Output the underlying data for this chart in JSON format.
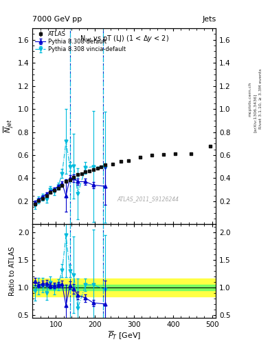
{
  "title_main": "7000 GeV pp",
  "title_right": "Jets",
  "plot_title": "N$_{jet}$ vs pT (LJ) (1 < $\\Delta y$ < 2)",
  "xlabel": "$\\overline{P}_T$ [GeV]",
  "ylabel_main": "$\\overline{N}_{jet}$",
  "ylabel_ratio": "Ratio to ATLAS",
  "watermark": "ATLAS_2011_S9126244",
  "right_label1": "Rivet 3.1.10, ≥ 3.3M events",
  "right_label2": "[arXiv:1306.3436]",
  "right_label3": "mcplots.cern.ch",
  "atlas_x": [
    46,
    56,
    66,
    76,
    86,
    96,
    106,
    116,
    126,
    136,
    146,
    156,
    166,
    176,
    186,
    196,
    206,
    216,
    226,
    246,
    266,
    286,
    316,
    346,
    376,
    406,
    446,
    496
  ],
  "atlas_y": [
    0.175,
    0.205,
    0.225,
    0.245,
    0.275,
    0.295,
    0.315,
    0.335,
    0.37,
    0.385,
    0.41,
    0.43,
    0.44,
    0.455,
    0.465,
    0.475,
    0.485,
    0.5,
    0.515,
    0.525,
    0.545,
    0.555,
    0.58,
    0.6,
    0.605,
    0.61,
    0.61,
    0.68
  ],
  "atlas_yerr": [
    0.008,
    0.008,
    0.008,
    0.008,
    0.008,
    0.008,
    0.008,
    0.008,
    0.008,
    0.008,
    0.008,
    0.008,
    0.008,
    0.008,
    0.008,
    0.008,
    0.008,
    0.008,
    0.008,
    0.008,
    0.008,
    0.008,
    0.008,
    0.008,
    0.008,
    0.008,
    0.008,
    0.012
  ],
  "py8_x": [
    46,
    56,
    66,
    76,
    86,
    96,
    106,
    116,
    126,
    136,
    146,
    156,
    176,
    196,
    226
  ],
  "py8_y": [
    0.195,
    0.215,
    0.24,
    0.265,
    0.285,
    0.308,
    0.33,
    0.355,
    0.248,
    0.4,
    0.4,
    0.37,
    0.37,
    0.34,
    0.33
  ],
  "py8_yerr": [
    0.01,
    0.01,
    0.01,
    0.012,
    0.012,
    0.012,
    0.015,
    0.018,
    0.14,
    0.025,
    0.035,
    0.025,
    0.025,
    0.025,
    0.16
  ],
  "vincia_x": [
    46,
    56,
    66,
    76,
    86,
    96,
    106,
    116,
    126,
    136,
    146,
    156,
    176,
    196,
    226
  ],
  "vincia_y": [
    0.165,
    0.21,
    0.235,
    0.22,
    0.3,
    0.285,
    0.33,
    0.44,
    0.72,
    0.5,
    0.505,
    0.265,
    0.49,
    0.5,
    0.495
  ],
  "vincia_yerr": [
    0.03,
    0.03,
    0.03,
    0.03,
    0.03,
    0.03,
    0.03,
    0.04,
    0.28,
    0.04,
    0.28,
    0.22,
    0.05,
    0.48,
    0.48
  ],
  "py8_vline_x": [
    136,
    220
  ],
  "vincia_vline_x": [
    136,
    220
  ],
  "ratio_py8_y": [
    1.11,
    1.05,
    1.07,
    1.08,
    1.04,
    1.04,
    1.05,
    1.06,
    0.67,
    1.04,
    0.975,
    0.86,
    0.81,
    0.72,
    0.7
  ],
  "ratio_py8_yerr": [
    0.07,
    0.05,
    0.05,
    0.06,
    0.05,
    0.05,
    0.05,
    0.06,
    0.38,
    0.07,
    0.09,
    0.07,
    0.07,
    0.06,
    0.42
  ],
  "ratio_vincia_y": [
    0.94,
    1.02,
    1.04,
    0.9,
    1.09,
    0.97,
    1.05,
    1.31,
    1.95,
    1.3,
    1.23,
    0.62,
    1.05,
    1.05,
    0.96
  ],
  "ratio_vincia_yerr": [
    0.18,
    0.15,
    0.13,
    0.12,
    0.11,
    0.1,
    0.1,
    0.12,
    0.76,
    0.11,
    0.7,
    0.54,
    0.11,
    1.0,
    1.0
  ],
  "green_band_lo": 0.95,
  "green_band_hi": 1.05,
  "yellow_band_lo": 0.84,
  "yellow_band_hi": 1.16,
  "main_ylim": [
    0.0,
    1.7
  ],
  "main_yticks": [
    0.2,
    0.4,
    0.6,
    0.8,
    1.0,
    1.2,
    1.4,
    1.6
  ],
  "ratio_ylim": [
    0.45,
    2.15
  ],
  "ratio_yticks": [
    0.5,
    1.0,
    1.5,
    2.0
  ],
  "xlim": [
    40,
    510
  ],
  "xticks": [
    100,
    200,
    300,
    400,
    500
  ],
  "color_atlas": "#111111",
  "color_py8": "#0000cc",
  "color_vincia": "#00bbdd",
  "color_green": "#66ff66",
  "color_yellow": "#ffff44",
  "bg_color": "#ffffff"
}
